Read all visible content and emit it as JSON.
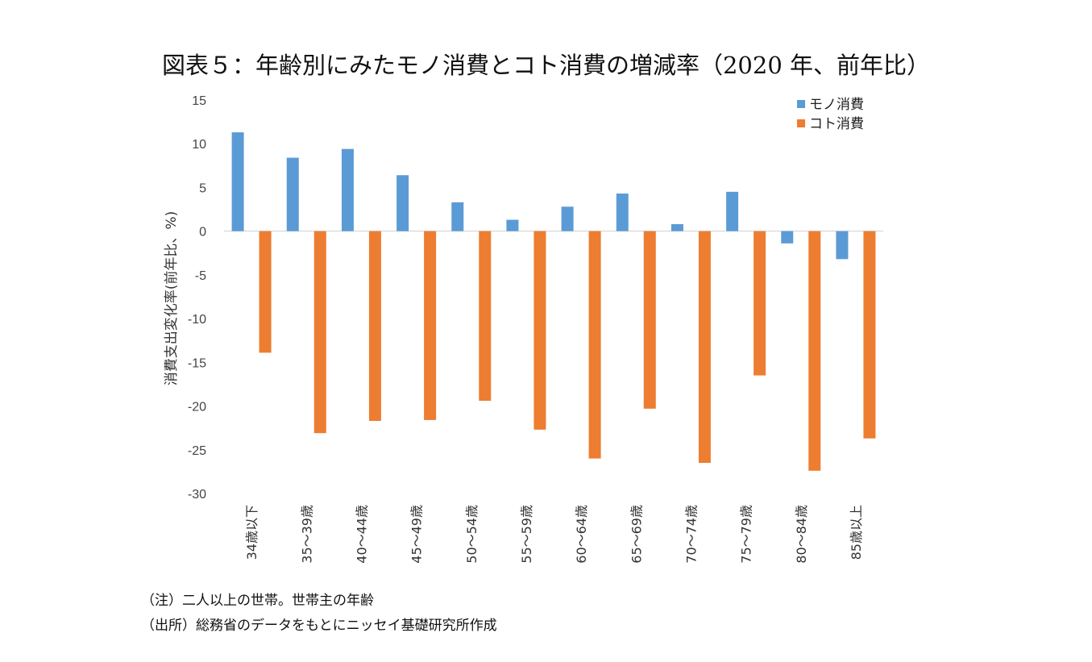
{
  "chart_data": {
    "type": "bar",
    "title": "図表５：年齢別にみたモノ消費とコト消費の増減率（2020 年、前年比）",
    "ylabel": "消費支出変化率(前年比、%)",
    "xlabel": "",
    "ylim": [
      -30,
      15
    ],
    "yticks": [
      15,
      10,
      5,
      0,
      -5,
      -10,
      -15,
      -20,
      -25,
      -30
    ],
    "categories": [
      "34歳以下",
      "35～39歳",
      "40～44歳",
      "45～49歳",
      "50～54歳",
      "55～59歳",
      "60～64歳",
      "65～69歳",
      "70～74歳",
      "75～79歳",
      "80～84歳",
      "85歳以上"
    ],
    "series": [
      {
        "name": "モノ消費",
        "color": "#5B9BD5",
        "values": [
          11.3,
          8.4,
          9.4,
          6.4,
          3.3,
          1.3,
          2.8,
          4.3,
          0.8,
          4.5,
          -1.4,
          -3.2
        ]
      },
      {
        "name": "コト消費",
        "color": "#ED7D31",
        "values": [
          -13.9,
          -23.1,
          -21.7,
          -21.6,
          -19.4,
          -22.7,
          -26.0,
          -20.3,
          -26.5,
          -16.5,
          -27.4,
          -23.7
        ]
      }
    ],
    "legend_position": "top-right",
    "grid": false
  },
  "notes": {
    "note1": "（注）二人以上の世帯。世帯主の年齢",
    "note2": "（出所）総務省のデータをもとにニッセイ基礎研究所作成"
  }
}
